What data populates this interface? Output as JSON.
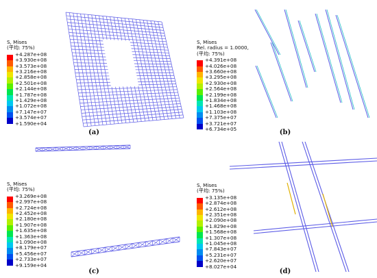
{
  "panels": [
    {
      "id": "a",
      "caption": "(a)",
      "legend": {
        "title": "S, Mises",
        "subtitle": "",
        "avg": "(平均: 75%)",
        "values": [
          "+4.287e+08",
          "+3.930e+08",
          "+3.573e+08",
          "+3.216e+08",
          "+2.858e+08",
          "+2.501e+08",
          "+2.144e+08",
          "+1.787e+08",
          "+1.429e+08",
          "+1.072e+08",
          "+7.147e+07",
          "+3.574e+07",
          "+1.590e+04"
        ]
      }
    },
    {
      "id": "b",
      "caption": "(b)",
      "legend": {
        "title": "S, Mises",
        "subtitle": "Rel. radius = 1.0000,",
        "avg": "(平均: 75%)",
        "values": [
          "+4.391e+08",
          "+4.026e+08",
          "+3.660e+08",
          "+3.295e+08",
          "+2.930e+08",
          "+2.564e+08",
          "+2.199e+08",
          "+1.834e+08",
          "+1.468e+08",
          "+1.103e+08",
          "+7.375e+07",
          "+3.721e+07",
          "+6.734e+05"
        ]
      }
    },
    {
      "id": "c",
      "caption": "(c)",
      "legend": {
        "title": "S, Mises",
        "subtitle": "",
        "avg": "(平均: 75%)",
        "values": [
          "+3.269e+08",
          "+2.997e+08",
          "+2.724e+08",
          "+2.452e+08",
          "+2.180e+08",
          "+1.907e+08",
          "+1.635e+08",
          "+1.363e+08",
          "+1.090e+08",
          "+8.179e+07",
          "+5.456e+07",
          "+2.733e+07",
          "+9.159e+04"
        ]
      }
    },
    {
      "id": "d",
      "caption": "(d)",
      "legend": {
        "title": "S, Mises",
        "subtitle": "",
        "avg": "(平均: 75%)",
        "values": [
          "+3.135e+08",
          "+2.874e+08",
          "+2.612e+08",
          "+2.351e+08",
          "+2.090e+08",
          "+1.829e+08",
          "+1.568e+08",
          "+1.307e+08",
          "+1.045e+08",
          "+7.843e+07",
          "+5.231e+07",
          "+2.620e+07",
          "+8.027e+04"
        ]
      }
    }
  ],
  "colorbar": [
    "#ff0000",
    "#ff5a00",
    "#ffb400",
    "#f0e600",
    "#b4f000",
    "#5af000",
    "#00e650",
    "#00e6b4",
    "#00c8f0",
    "#008cf0",
    "#0050f0",
    "#0000c8"
  ],
  "line_color": "#5a5ae6"
}
